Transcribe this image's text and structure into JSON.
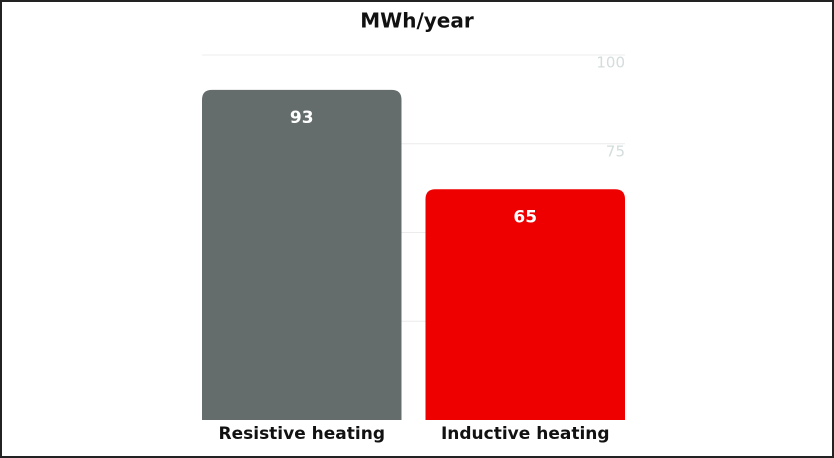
{
  "chart_data": {
    "type": "bar",
    "title": "MWh/year",
    "categories": [
      "Resistive heating",
      "Inductive heating"
    ],
    "values": [
      93,
      65
    ],
    "colors": [
      "#646c6c",
      "#ee0000"
    ],
    "ylim": [
      0,
      100
    ],
    "yticks": [
      25,
      50,
      75,
      100
    ],
    "grid": true
  }
}
